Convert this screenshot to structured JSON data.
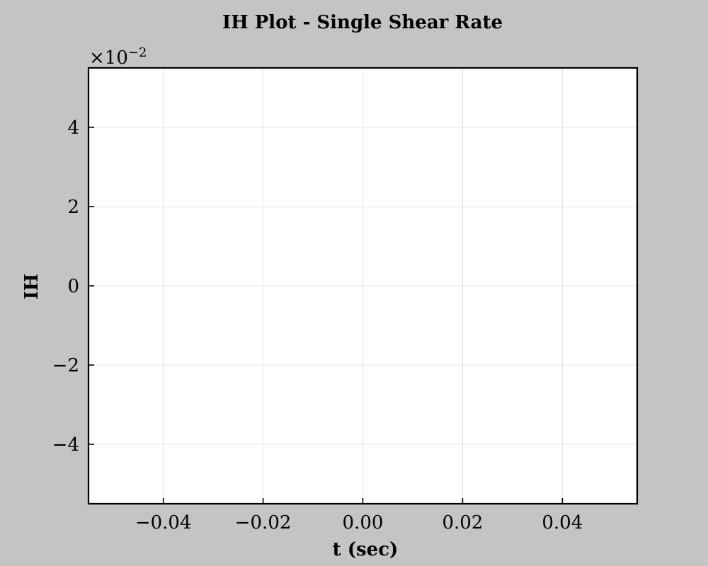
{
  "chart_data": {
    "type": "line",
    "title": "IH Plot - Single Shear Rate",
    "xlabel": "t (sec)",
    "ylabel": "IH",
    "x": [],
    "series": [],
    "xlim": [
      -0.055,
      0.055
    ],
    "ylim": [
      -0.055,
      0.055
    ],
    "x_ticks": [
      -0.04,
      -0.02,
      0.0,
      0.02,
      0.04
    ],
    "x_tick_labels": [
      "−0.04",
      "−0.02",
      "0.00",
      "0.02",
      "0.04"
    ],
    "y_ticks": [
      -0.04,
      -0.02,
      0.0,
      0.02,
      0.04
    ],
    "y_tick_labels": [
      "−4",
      "−2",
      "0",
      "2",
      "4"
    ],
    "y_offset_label_base": "×10",
    "y_offset_label_exponent": "−2",
    "grid": true,
    "colors": {
      "figure_background": "#c4c4c4",
      "plot_background": "#ffffff",
      "grid": "#dcdcdc",
      "axes": "#000000"
    }
  }
}
